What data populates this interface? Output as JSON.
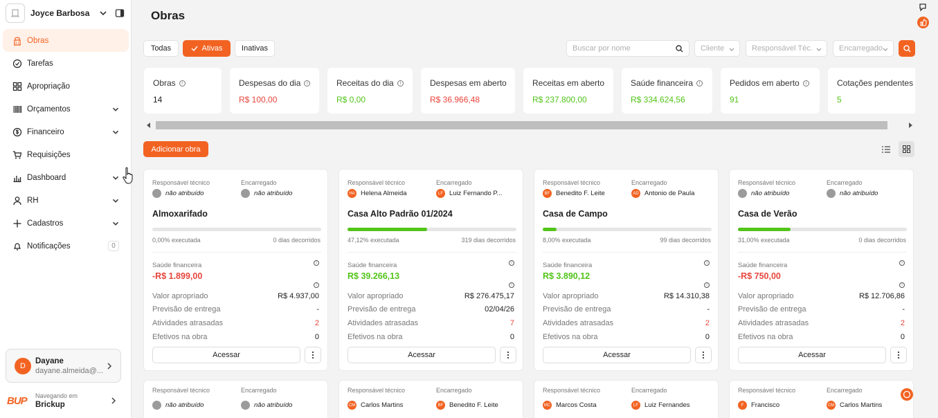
{
  "workspace": {
    "name": "Joyce Barbosa E..."
  },
  "nav": [
    {
      "label": "Obras",
      "icon": "building-icon",
      "active": true
    },
    {
      "label": "Tarefas",
      "icon": "check-circle-icon"
    },
    {
      "label": "Apropriação",
      "icon": "grid-icon"
    },
    {
      "label": "Orçamentos",
      "icon": "barcode-icon",
      "expandable": true
    },
    {
      "label": "Financeiro",
      "icon": "dollar-circle-icon",
      "expandable": true
    },
    {
      "label": "Requisições",
      "icon": "cart-icon"
    },
    {
      "label": "Dashboard",
      "icon": "bar-chart-icon",
      "expandable": true
    },
    {
      "label": "RH",
      "icon": "user-icon",
      "expandable": true
    },
    {
      "label": "Cadastros",
      "icon": "plus-icon",
      "expandable": true
    },
    {
      "label": "Notificações",
      "icon": "bell-icon",
      "badge": "0"
    }
  ],
  "user": {
    "initial": "D",
    "name": "Dayane",
    "email": "dayane.almeida@..."
  },
  "brand": {
    "logo": "BUP",
    "sub": "Navegando em",
    "name": "Brickup"
  },
  "page": {
    "title": "Obras"
  },
  "filters": {
    "all": "Todas",
    "active": "Ativas",
    "inactive": "Inativas"
  },
  "search": {
    "placeholder": "Buscar por nome"
  },
  "selects": {
    "client": "Cliente",
    "tech": "Responsável Téc.",
    "manager": "Encarregado"
  },
  "kpis": [
    {
      "label": "Obras",
      "value": "14",
      "info": true,
      "color": "black"
    },
    {
      "label": "Despesas do dia",
      "value": "R$ 100,00",
      "info": true,
      "color": "red"
    },
    {
      "label": "Receitas do dia",
      "value": "R$ 0,00",
      "info": true,
      "color": "green"
    },
    {
      "label": "Despesas em aberto",
      "value": "R$ 36.966,48",
      "info": false,
      "color": "red"
    },
    {
      "label": "Receitas em aberto",
      "value": "R$ 237.800,00",
      "info": false,
      "color": "green"
    },
    {
      "label": "Saúde financeira",
      "value": "R$ 334.624,56",
      "info": true,
      "color": "green"
    },
    {
      "label": "Pedidos em aberto",
      "value": "91",
      "info": true,
      "color": "green"
    },
    {
      "label": "Cotações pendentes",
      "value": "5",
      "info": false,
      "color": "green"
    }
  ],
  "actions": {
    "add": "Adicionar obra"
  },
  "labels": {
    "tech": "Responsável técnico",
    "manager": "Encarregado",
    "health": "Saúde financeira",
    "appropriated": "Valor apropriado",
    "delivery": "Previsão de entrega",
    "late": "Atividades atrasadas",
    "staff": "Efetivos na obra",
    "access": "Acessar"
  },
  "cards": [
    {
      "tech": {
        "initials": "",
        "name": "não atribuído",
        "unassigned": true
      },
      "manager": {
        "initials": "",
        "name": "não atribuído",
        "unassigned": true
      },
      "title": "Almoxarifado",
      "progress": 0,
      "executed": "0,00% executada",
      "days": "0 dias decorridos",
      "health": "-R$ 1.899,00",
      "health_color": "red",
      "appropriated": "R$ 4.937,00",
      "delivery": "-",
      "late": "2",
      "staff": "0"
    },
    {
      "tech": {
        "initials": "HA",
        "name": "Helena Almeida"
      },
      "manager": {
        "initials": "LF",
        "name": "Luiz Fernando P..."
      },
      "title": "Casa Alto Padrão 01/2024",
      "progress": 0.4712,
      "executed": "47,12% executada",
      "days": "319 dias decorridos",
      "health": "R$ 39.266,13",
      "health_color": "green",
      "appropriated": "R$ 276.475,17",
      "delivery": "02/04/26",
      "late": "7",
      "staff": "0"
    },
    {
      "tech": {
        "initials": "BF",
        "name": "Benedito F. Leite"
      },
      "manager": {
        "initials": "AD",
        "name": "Antonio de Paula"
      },
      "title": "Casa de Campo",
      "progress": 0.08,
      "executed": "8,00% executada",
      "days": "99 dias decorridos",
      "health": "R$ 3.890,12",
      "health_color": "green",
      "appropriated": "R$ 14.310,38",
      "delivery": "-",
      "late": "2",
      "staff": "0"
    },
    {
      "tech": {
        "initials": "",
        "name": "não atribuído",
        "unassigned": true
      },
      "manager": {
        "initials": "",
        "name": "não atribuído",
        "unassigned": true
      },
      "title": "Casa de Verão",
      "progress": 0.31,
      "executed": "31,00% executada",
      "days": "0 dias decorridos",
      "health": "-R$ 750,00",
      "health_color": "red",
      "appropriated": "R$ 12.706,86",
      "delivery": "-",
      "late": "2",
      "staff": "0"
    }
  ],
  "cards_row2": [
    {
      "tech": {
        "initials": "",
        "name": "não atribuído",
        "unassigned": true
      },
      "manager": {
        "initials": "",
        "name": "não atribuído",
        "unassigned": true
      }
    },
    {
      "tech": {
        "initials": "CM",
        "name": "Carlos Martins"
      },
      "manager": {
        "initials": "BF",
        "name": "Benedito F. Leite"
      }
    },
    {
      "tech": {
        "initials": "MC",
        "name": "Marcos Costa"
      },
      "manager": {
        "initials": "LF",
        "name": "Luiz Fernandes"
      }
    },
    {
      "tech": {
        "initials": "F",
        "name": "Francisco"
      },
      "manager": {
        "initials": "CM",
        "name": "Carlos Martins"
      }
    }
  ],
  "colors": {
    "accent": "#f26322",
    "green": "#52c41a",
    "red": "#e8453c"
  }
}
